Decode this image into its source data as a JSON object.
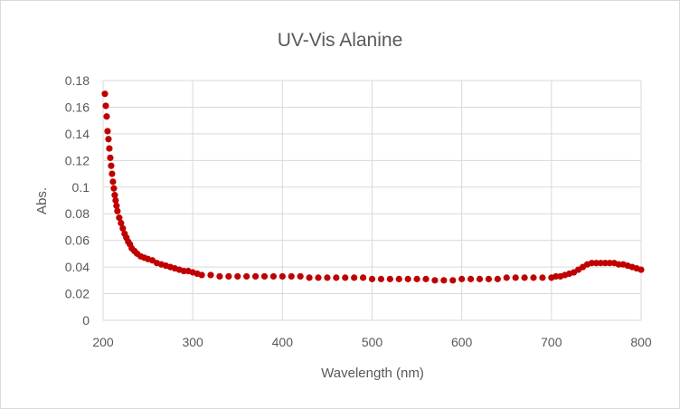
{
  "chart_data": {
    "type": "scatter",
    "title": "UV-Vis Alanine",
    "xlabel": "Wavelength (nm)",
    "ylabel": "Abs.",
    "xlim": [
      200,
      800
    ],
    "ylim": [
      0,
      0.18
    ],
    "x_ticks": [
      "200",
      "300",
      "400",
      "500",
      "600",
      "700",
      "800"
    ],
    "y_ticks": [
      "0",
      "0.02",
      "0.04",
      "0.06",
      "0.08",
      "0.1",
      "0.12",
      "0.14",
      "0.16",
      "0.18"
    ],
    "grid": true,
    "legend": "none",
    "marker_color": "#c00000",
    "series": [
      {
        "x": [
          202,
          203,
          204,
          205,
          206,
          207,
          208,
          209,
          210,
          211,
          212,
          213,
          214,
          215,
          216,
          218,
          220,
          222,
          224,
          226,
          228,
          230,
          232,
          235,
          238,
          242,
          246,
          250,
          255,
          260,
          265,
          270,
          275,
          280,
          285,
          290,
          295,
          300,
          305,
          310,
          320,
          330,
          340,
          350,
          360,
          370,
          380,
          390,
          400,
          410,
          420,
          430,
          440,
          450,
          460,
          470,
          480,
          490,
          500,
          510,
          520,
          530,
          540,
          550,
          560,
          570,
          580,
          590,
          600,
          610,
          620,
          630,
          640,
          650,
          660,
          670,
          680,
          690,
          700,
          705,
          710,
          715,
          720,
          725,
          730,
          735,
          740,
          745,
          750,
          755,
          760,
          765,
          770,
          775,
          780,
          785,
          790,
          795,
          800
        ],
        "y": [
          0.17,
          0.161,
          0.153,
          0.142,
          0.136,
          0.129,
          0.122,
          0.116,
          0.11,
          0.104,
          0.099,
          0.094,
          0.09,
          0.086,
          0.082,
          0.077,
          0.073,
          0.069,
          0.065,
          0.062,
          0.059,
          0.057,
          0.054,
          0.052,
          0.05,
          0.048,
          0.047,
          0.046,
          0.045,
          0.043,
          0.042,
          0.041,
          0.04,
          0.039,
          0.038,
          0.037,
          0.037,
          0.036,
          0.035,
          0.034,
          0.034,
          0.033,
          0.033,
          0.033,
          0.033,
          0.033,
          0.033,
          0.033,
          0.033,
          0.033,
          0.033,
          0.032,
          0.032,
          0.032,
          0.032,
          0.032,
          0.032,
          0.032,
          0.031,
          0.031,
          0.031,
          0.031,
          0.031,
          0.031,
          0.031,
          0.03,
          0.03,
          0.03,
          0.031,
          0.031,
          0.031,
          0.031,
          0.031,
          0.032,
          0.032,
          0.032,
          0.032,
          0.032,
          0.032,
          0.033,
          0.033,
          0.034,
          0.035,
          0.036,
          0.038,
          0.04,
          0.042,
          0.043,
          0.043,
          0.043,
          0.043,
          0.043,
          0.043,
          0.042,
          0.042,
          0.041,
          0.04,
          0.039,
          0.038
        ]
      }
    ]
  }
}
